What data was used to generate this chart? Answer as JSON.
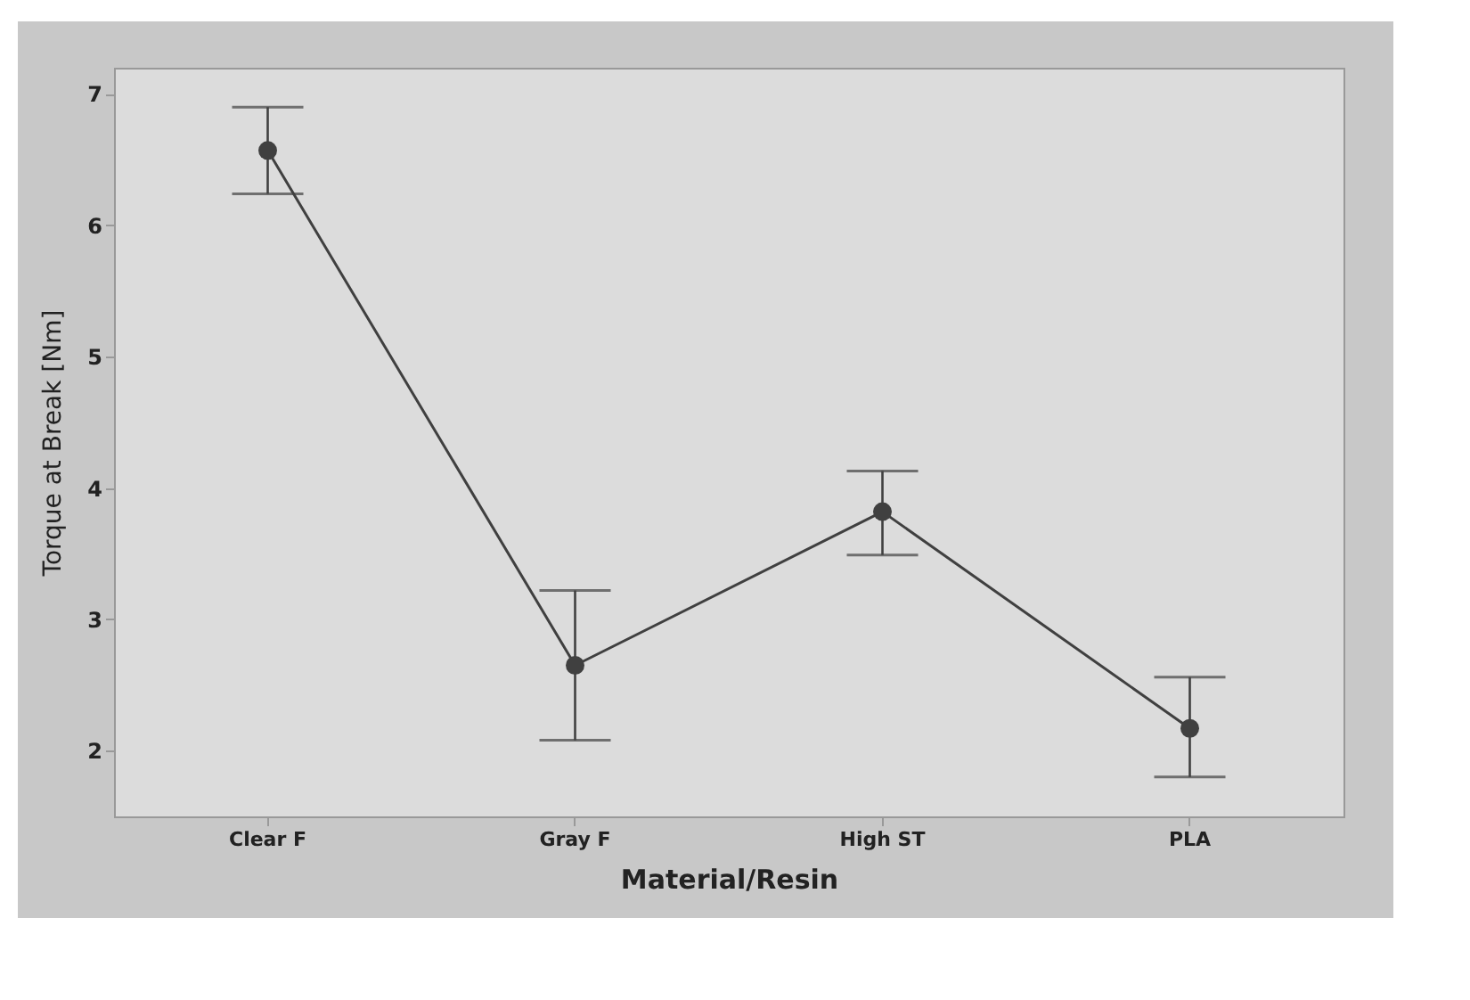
{
  "chart_data": {
    "type": "line",
    "xlabel": "Material/Resin",
    "ylabel": "Torque at Break [Nm]",
    "categories": [
      "Clear F",
      "Gray F",
      "High ST",
      "PLA"
    ],
    "series": [
      {
        "color": "#404040",
        "values": [
          6.57,
          2.65,
          3.82,
          2.17
        ],
        "errors": [
          [
            6.24,
            6.9
          ],
          [
            2.08,
            3.22
          ],
          [
            3.49,
            4.13
          ],
          [
            1.8,
            2.56
          ]
        ]
      }
    ],
    "ylim": [
      1.5,
      7.2
    ],
    "yticks": [
      2,
      3,
      4,
      5,
      6,
      7
    ],
    "grid": false,
    "marker": "circle",
    "line_style": "solid"
  }
}
